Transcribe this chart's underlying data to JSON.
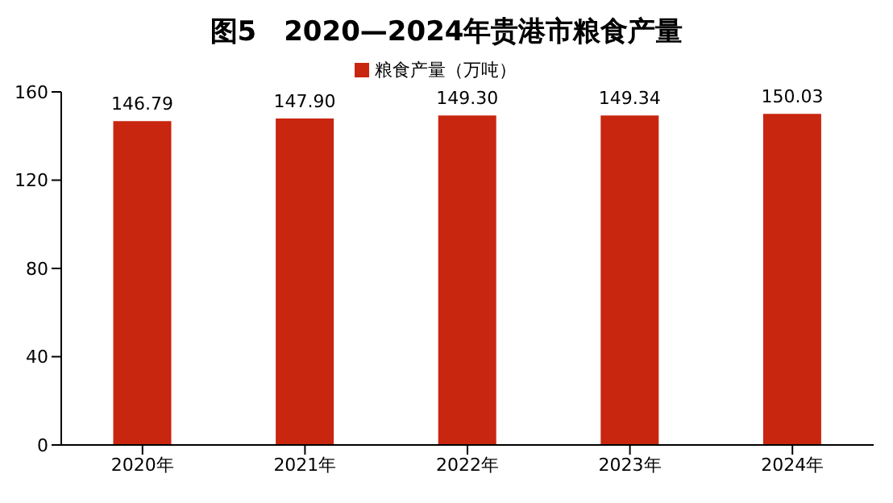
{
  "chart_data": {
    "type": "bar",
    "title": "图5　2020—2024年贵港市粮食产量",
    "categories": [
      "2020年",
      "2021年",
      "2022年",
      "2023年",
      "2024年"
    ],
    "series": [
      {
        "name": "粮食产量（万吨）",
        "color": "#c8260f",
        "values": [
          146.79,
          147.9,
          149.3,
          149.34,
          150.03
        ]
      }
    ],
    "value_labels": [
      "146.79",
      "147.90",
      "149.30",
      "149.34",
      "150.03"
    ],
    "ylim": [
      0,
      160
    ],
    "yticks": [
      0,
      40,
      80,
      120,
      160
    ],
    "grid": false,
    "legend": "top"
  }
}
